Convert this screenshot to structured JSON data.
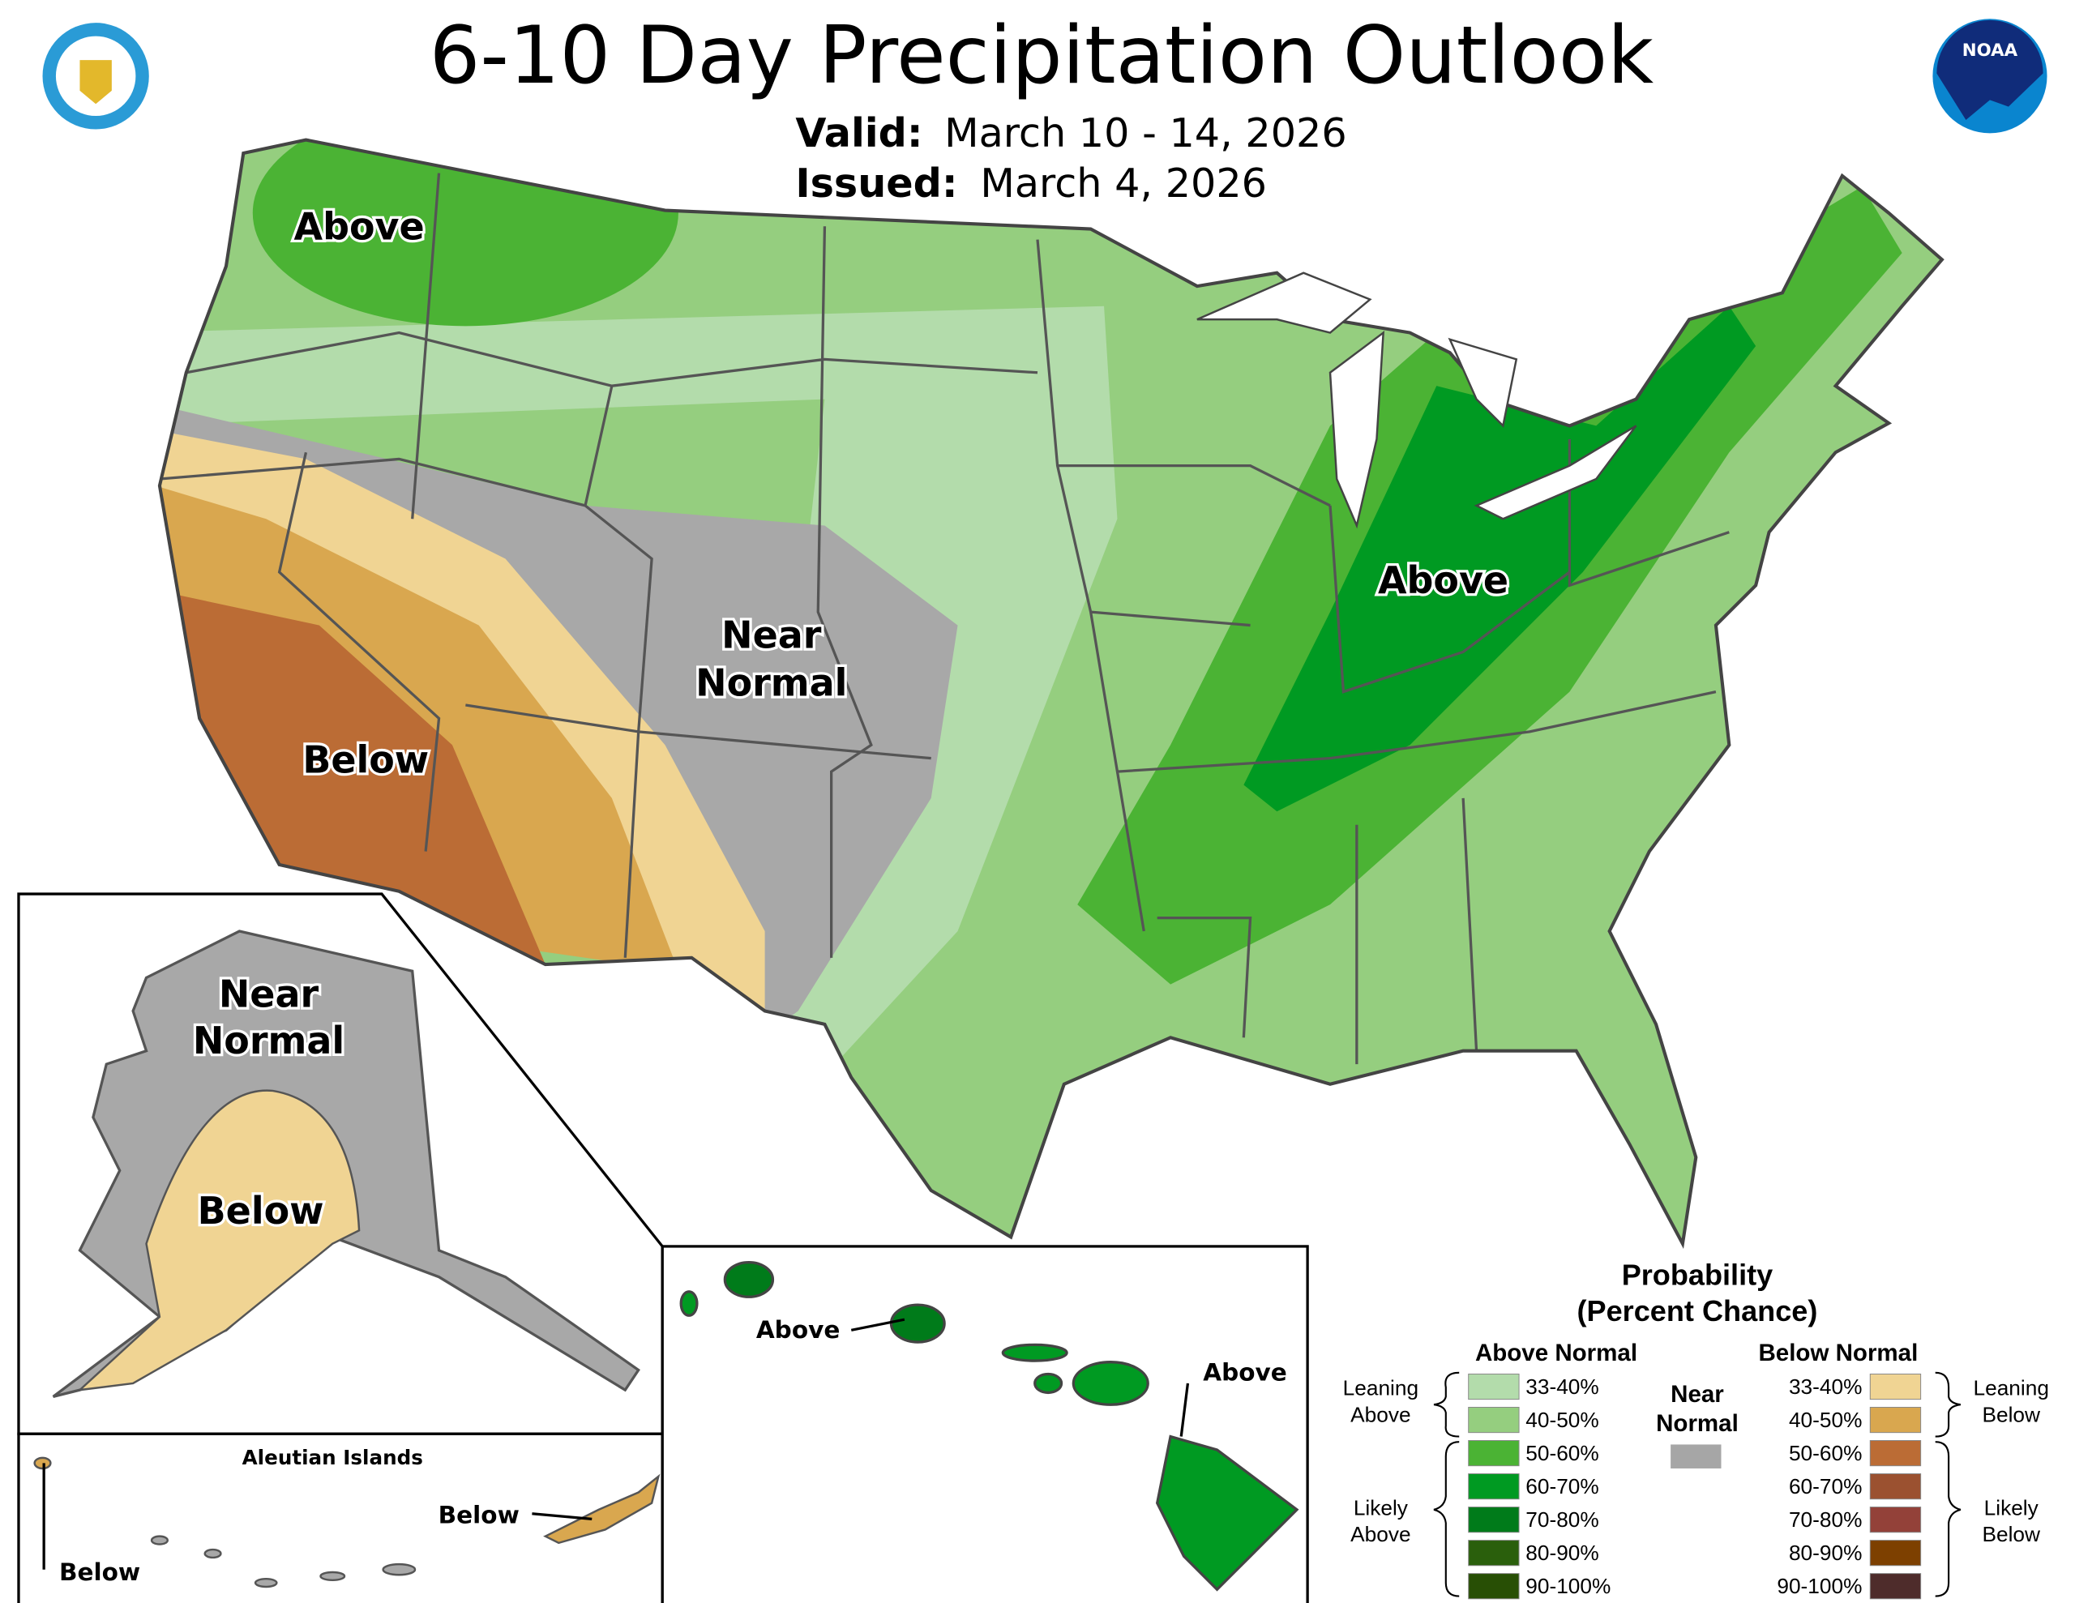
{
  "title": "6-10 Day Precipitation Outlook",
  "valid": {
    "label": "Valid:",
    "value": "March 10 - 14, 2026"
  },
  "issued": {
    "label": "Issued:",
    "value": "March 4, 2026"
  },
  "logos": {
    "left": "Department of Commerce - United States of America",
    "right": "NOAA"
  },
  "map_labels": {
    "nw_above": "Above",
    "east_above": "Above",
    "near_normal": [
      "Near",
      "Normal"
    ],
    "sw_below": "Below",
    "alaska_near_normal": [
      "Near",
      "Normal"
    ],
    "alaska_below": "Below",
    "aleutian_title": "Aleutian Islands",
    "aleutian_below_east": "Below",
    "aleutian_below_west": "Below",
    "hawaii_above_west": "Above",
    "hawaii_above_east": "Above"
  },
  "legend": {
    "title": "Probability",
    "subtitle": "(Percent Chance)",
    "above_header": "Above Normal",
    "below_header": "Below Normal",
    "near_normal": [
      "Near",
      "Normal"
    ],
    "near_normal_color": "#a6a6a6",
    "leaning_above": [
      "Leaning",
      "Above"
    ],
    "likely_above": [
      "Likely",
      "Above"
    ],
    "leaning_below": [
      "Leaning",
      "Below"
    ],
    "likely_below": [
      "Likely",
      "Below"
    ],
    "above": [
      {
        "range": "33-40%",
        "color": "#b3dcab"
      },
      {
        "range": "40-50%",
        "color": "#95ce7f"
      },
      {
        "range": "50-60%",
        "color": "#4bb334"
      },
      {
        "range": "60-70%",
        "color": "#009a22"
      },
      {
        "range": "70-80%",
        "color": "#007b1a"
      },
      {
        "range": "80-90%",
        "color": "#2a5f0c"
      },
      {
        "range": "90-100%",
        "color": "#284f05"
      }
    ],
    "below": [
      {
        "range": "33-40%",
        "color": "#f0d493"
      },
      {
        "range": "40-50%",
        "color": "#d9a74f"
      },
      {
        "range": "50-60%",
        "color": "#bb6c35"
      },
      {
        "range": "60-70%",
        "color": "#9b5130"
      },
      {
        "range": "70-80%",
        "color": "#934139"
      },
      {
        "range": "80-90%",
        "color": "#7d4000"
      },
      {
        "range": "90-100%",
        "color": "#4e2c2b"
      }
    ]
  }
}
